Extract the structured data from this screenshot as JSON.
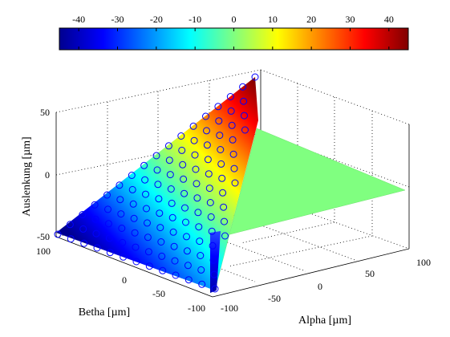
{
  "chart_data": {
    "type": "surface",
    "view": "3d",
    "xlabel": "Alpha [µm]",
    "ylabel": "Betha [µm]",
    "zlabel": "Auslenkung [µm]",
    "x_ticks": [
      "-100",
      "-50",
      "0",
      "50",
      "100"
    ],
    "y_ticks": [
      "-100",
      "-50",
      "0",
      "50",
      "100"
    ],
    "z_ticks": [
      "-50",
      "0",
      "50"
    ],
    "xlim": [
      -100,
      100
    ],
    "ylim": [
      -100,
      100
    ],
    "zlim": [
      -50,
      50
    ],
    "grid": true,
    "colormap": "jet",
    "colorbar": {
      "position": "top",
      "range": [
        -45,
        45
      ],
      "ticks": [
        "-40",
        "-30",
        "-20",
        "-10",
        "0",
        "10",
        "20",
        "30",
        "40"
      ]
    },
    "colors": {
      "marker_edge": "#0000ff",
      "flat_plane": "#80ff80"
    },
    "marker": "circle",
    "description_series": [
      {
        "surface": "tilted plane",
        "z_range": [
          -45,
          45
        ]
      },
      {
        "surface": "flat plane",
        "z": 0
      }
    ]
  }
}
